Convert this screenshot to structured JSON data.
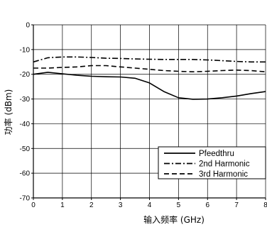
{
  "chart_data": {
    "type": "line",
    "xlabel": "输入频率 (GHz)",
    "ylabel": "功率 (dBm)",
    "xlim": [
      0,
      8
    ],
    "ylim": [
      -70,
      0
    ],
    "xticks": [
      "0",
      "1",
      "2",
      "3",
      "4",
      "5",
      "6",
      "7",
      "8"
    ],
    "yticks": [
      "0",
      "-10",
      "-20",
      "-30",
      "-40",
      "-50",
      "-60",
      "-70"
    ],
    "grid": true,
    "legend_position": "bottom-right",
    "series": [
      {
        "name": "Pfeedthru",
        "style": "solid",
        "x": [
          0,
          0.5,
          1,
          1.5,
          2,
          2.5,
          3,
          3.5,
          4,
          4.5,
          5,
          5.5,
          6,
          6.5,
          7,
          7.5,
          8
        ],
        "y": [
          -20,
          -19.2,
          -19.8,
          -20.4,
          -20.8,
          -21,
          -21.1,
          -21.6,
          -23.5,
          -27,
          -29.5,
          -30.1,
          -30,
          -29.5,
          -28.8,
          -27.8,
          -27
        ]
      },
      {
        "name": "2nd Harmonic",
        "style": "dash-dot",
        "x": [
          0,
          0.5,
          1,
          1.5,
          2,
          2.5,
          3,
          3.5,
          4,
          4.5,
          5,
          5.5,
          6,
          6.5,
          7,
          7.5,
          8
        ],
        "y": [
          -15,
          -13.3,
          -13,
          -13,
          -13.2,
          -13.5,
          -13.6,
          -13.8,
          -13.9,
          -14,
          -14,
          -14,
          -14.2,
          -14.5,
          -14.8,
          -15,
          -15
        ]
      },
      {
        "name": "3rd Harmonic",
        "style": "dashed",
        "x": [
          0,
          0.5,
          1,
          1.5,
          2,
          2.5,
          3,
          3.5,
          4,
          4.5,
          5,
          5.5,
          6,
          6.5,
          7,
          7.5,
          8
        ],
        "y": [
          -17.5,
          -17.5,
          -17.2,
          -17,
          -16.5,
          -16.5,
          -17,
          -17.5,
          -18,
          -18.5,
          -18.8,
          -19,
          -18.8,
          -18.5,
          -18.3,
          -18.5,
          -19
        ]
      }
    ]
  }
}
